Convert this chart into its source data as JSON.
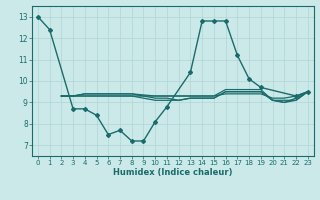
{
  "xlabel": "Humidex (Indice chaleur)",
  "ylabel": "",
  "xlim": [
    -0.5,
    23.5
  ],
  "ylim": [
    6.5,
    13.5
  ],
  "yticks": [
    7,
    8,
    9,
    10,
    11,
    12,
    13
  ],
  "xticks": [
    0,
    1,
    2,
    3,
    4,
    5,
    6,
    7,
    8,
    9,
    10,
    11,
    12,
    13,
    14,
    15,
    16,
    17,
    18,
    19,
    20,
    21,
    22,
    23
  ],
  "bg_color": "#cce9e9",
  "line_color": "#1a6b6b",
  "grid_color": "#b0d4d4",
  "lines": [
    {
      "x": [
        0,
        1,
        3,
        4,
        5,
        6,
        7,
        8,
        9,
        10,
        11,
        13,
        14,
        15,
        16,
        17,
        18,
        19,
        22,
        23
      ],
      "y": [
        13.0,
        12.4,
        8.7,
        8.7,
        8.4,
        7.5,
        7.7,
        7.2,
        7.2,
        8.1,
        8.8,
        10.4,
        12.8,
        12.8,
        12.8,
        11.2,
        10.1,
        9.7,
        9.3,
        9.5
      ],
      "marker": true,
      "linewidth": 1.0
    },
    {
      "x": [
        2,
        3,
        4,
        5,
        6,
        7,
        8,
        9,
        10,
        11,
        12,
        13,
        14,
        15,
        16,
        17,
        18,
        19,
        20,
        21,
        22,
        23
      ],
      "y": [
        9.3,
        9.3,
        9.3,
        9.3,
        9.3,
        9.3,
        9.3,
        9.3,
        9.3,
        9.3,
        9.3,
        9.3,
        9.3,
        9.3,
        9.6,
        9.6,
        9.6,
        9.6,
        9.1,
        9.1,
        9.1,
        9.5
      ],
      "marker": false,
      "linewidth": 0.9
    },
    {
      "x": [
        2,
        3,
        4,
        5,
        6,
        7,
        8,
        9,
        10,
        11,
        12,
        13,
        14,
        15,
        16,
        17,
        18,
        19,
        20,
        21,
        22,
        23
      ],
      "y": [
        9.3,
        9.3,
        9.4,
        9.4,
        9.4,
        9.4,
        9.4,
        9.35,
        9.3,
        9.3,
        9.3,
        9.3,
        9.3,
        9.3,
        9.4,
        9.4,
        9.4,
        9.4,
        9.2,
        9.2,
        9.3,
        9.5
      ],
      "marker": false,
      "linewidth": 0.9
    },
    {
      "x": [
        2,
        3,
        4,
        5,
        6,
        7,
        8,
        9,
        10,
        11,
        12,
        13,
        14,
        15,
        16,
        17,
        18,
        19,
        20,
        21,
        22,
        23
      ],
      "y": [
        9.3,
        9.3,
        9.3,
        9.3,
        9.3,
        9.3,
        9.3,
        9.2,
        9.1,
        9.1,
        9.1,
        9.2,
        9.2,
        9.2,
        9.5,
        9.5,
        9.5,
        9.5,
        9.1,
        9.0,
        9.1,
        9.5
      ],
      "marker": false,
      "linewidth": 0.9
    },
    {
      "x": [
        2,
        3,
        4,
        5,
        6,
        7,
        8,
        9,
        10,
        11,
        12,
        13,
        14,
        15,
        16,
        17,
        18,
        19,
        20,
        21,
        22,
        23
      ],
      "y": [
        9.3,
        9.3,
        9.4,
        9.4,
        9.4,
        9.4,
        9.4,
        9.3,
        9.2,
        9.2,
        9.1,
        9.2,
        9.2,
        9.2,
        9.5,
        9.5,
        9.5,
        9.5,
        9.1,
        9.0,
        9.2,
        9.5
      ],
      "marker": false,
      "linewidth": 0.9
    }
  ]
}
